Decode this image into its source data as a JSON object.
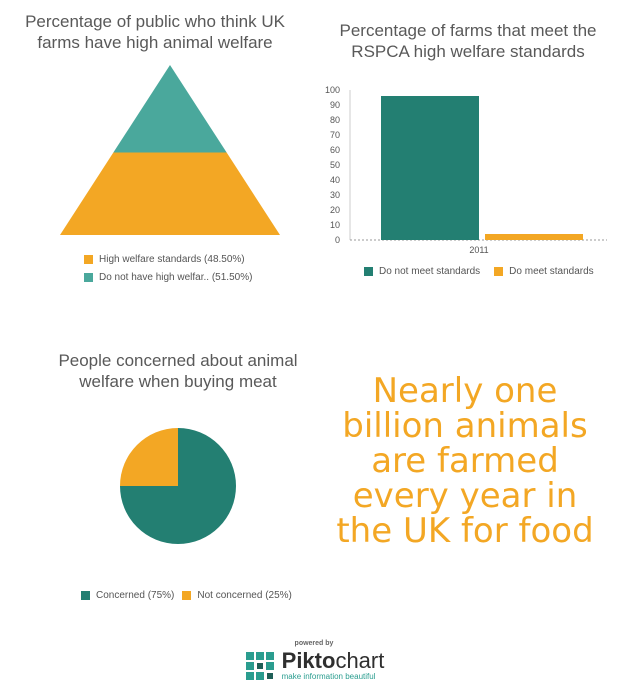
{
  "chart_data": [
    {
      "type": "pyramid",
      "title": "Percentage of public who think UK\nfarms have high animal welfare",
      "slices": [
        {
          "name": "High welfare standards (48.50%)",
          "value": 48.5,
          "color": "#f3a724"
        },
        {
          "name": "Do not have high welfar.. (51.50%)",
          "value": 51.5,
          "color": "#4aa89c"
        }
      ]
    },
    {
      "type": "bar",
      "title": "Percentage of farms that meet the\nRSPCA high welfare standards",
      "categories": [
        "2011"
      ],
      "series": [
        {
          "name": "Do not meet standards",
          "values": [
            96
          ],
          "color": "#237f72"
        },
        {
          "name": "Do meet standards",
          "values": [
            4
          ],
          "color": "#f3a724"
        }
      ],
      "ylim": [
        0,
        100
      ],
      "yticks": [
        "0",
        "10",
        "20",
        "30",
        "40",
        "50",
        "60",
        "70",
        "80",
        "90",
        "100"
      ],
      "grid": false,
      "legend": "bottom"
    },
    {
      "type": "pie",
      "title": "People concerned about animal\nwelfare when buying meat",
      "slices": [
        {
          "name": "Concerned (75%)",
          "value": 75,
          "color": "#237f72"
        },
        {
          "name": "Not concerned (25%)",
          "value": 25,
          "color": "#f3a724"
        }
      ],
      "legend": "bottom"
    }
  ],
  "fact_text": "Nearly one\nbillion animals\nare farmed\nevery year in\nthe UK for food",
  "brand": {
    "powered": "powered by",
    "name_bold": "Pikto",
    "name_light": "chart",
    "tagline": "make information beautiful"
  }
}
